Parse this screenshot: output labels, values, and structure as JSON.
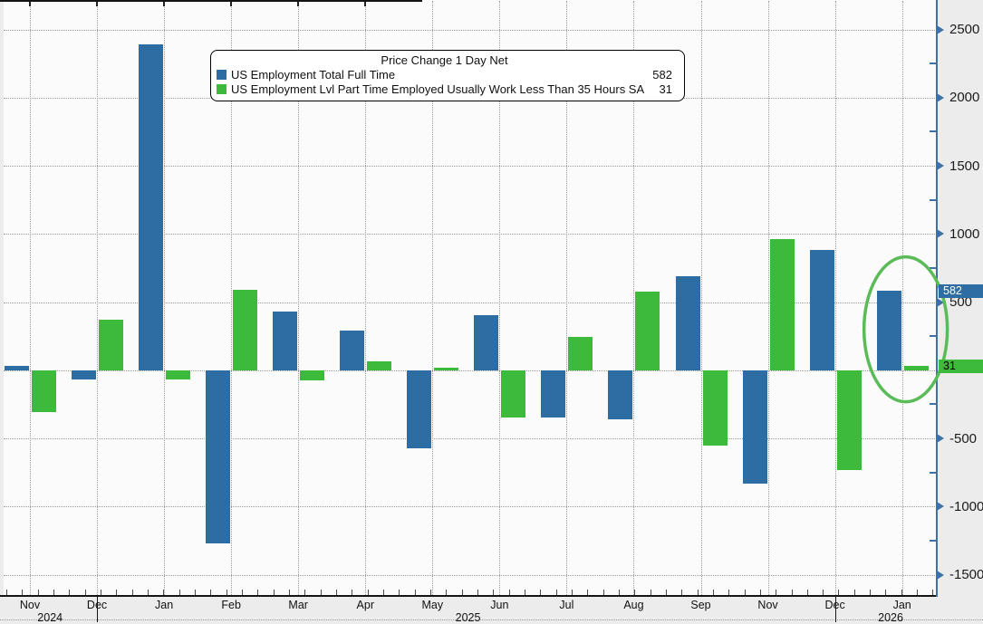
{
  "title": "Price Change 1 Day Net",
  "legend": {
    "title": "Price Change 1 Day Net",
    "items": [
      {
        "label": "US Employment Total Full Time",
        "value": "582",
        "color": "#2e6da4"
      },
      {
        "label": "US Employment Lvl Part Time Employed Usually Work Less Than 35 Hours SA",
        "value": "31",
        "color": "#3db93c"
      }
    ]
  },
  "y_axis": {
    "tick_labels": [
      "2500",
      "2000",
      "1500",
      "1000",
      "500",
      "-500",
      "-1000",
      "-1500"
    ],
    "tick_values": [
      2500,
      2000,
      1500,
      1000,
      500,
      -500,
      -1000,
      -1500
    ],
    "minor_tick_values": [
      2250,
      1750,
      1250,
      750,
      250,
      -250,
      -750,
      -1250
    ],
    "badges": [
      {
        "text": "582",
        "value": 582,
        "bg": "#2e6da4",
        "fg": "#ffffff"
      },
      {
        "text": "31",
        "value": 31,
        "bg": "#3db93c",
        "fg": "#000000"
      }
    ]
  },
  "x_axis": {
    "month_labels": [
      "Nov",
      "Dec",
      "Jan",
      "Feb",
      "Mar",
      "Apr",
      "May",
      "Jun",
      "Jul",
      "Aug",
      "Sep",
      "Nov",
      "Dec",
      "Jan"
    ],
    "year_labels": [
      {
        "text": "2024",
        "month_index": 0.3
      },
      {
        "text": "2025",
        "month_index": 6.53
      },
      {
        "text": "2026",
        "month_index": 12.83
      }
    ],
    "year_separator_month_indices": [
      1,
      12
    ]
  },
  "colors": {
    "full_time": "#2e6da4",
    "part_time": "#3db93c",
    "axis": "#3c72a8",
    "highlight": "#5abb58",
    "grid": "#9a9a9a"
  },
  "chart_data": {
    "type": "bar",
    "title": "Price Change 1 Day Net",
    "categories": [
      "Nov 2024",
      "Dec 2024",
      "Jan 2025",
      "Feb 2025",
      "Mar 2025",
      "Apr 2025",
      "May 2025",
      "Jun 2025",
      "Jul 2025",
      "Aug 2025",
      "Sep 2025",
      "Nov 2025",
      "Dec 2025",
      "Jan 2026"
    ],
    "series": [
      {
        "name": "US Employment Total Full Time",
        "color": "#2e6da4",
        "values": [
          35,
          -65,
          2390,
          -1270,
          430,
          290,
          -575,
          405,
          -350,
          -360,
          690,
          -830,
          880,
          582
        ]
      },
      {
        "name": "US Employment Lvl Part Time Employed Usually Work Less Than 35 Hours SA",
        "color": "#3db93c",
        "values": [
          -310,
          370,
          -70,
          590,
          -75,
          65,
          20,
          -345,
          245,
          580,
          -550,
          965,
          -735,
          31
        ]
      }
    ],
    "xlabel": "",
    "ylabel": "",
    "ylim": [
      -1655,
      2720
    ],
    "y_tick_step": 500,
    "grid": true,
    "legend_position": "top-center-box",
    "annotations": {
      "highlight_ellipse_category": "Jan 2026",
      "value_badges": [
        {
          "series": "US Employment Total Full Time",
          "value": 582
        },
        {
          "series": "US Employment Lvl Part Time Employed Usually Work Less Than 35 Hours SA",
          "value": 31
        }
      ]
    }
  }
}
